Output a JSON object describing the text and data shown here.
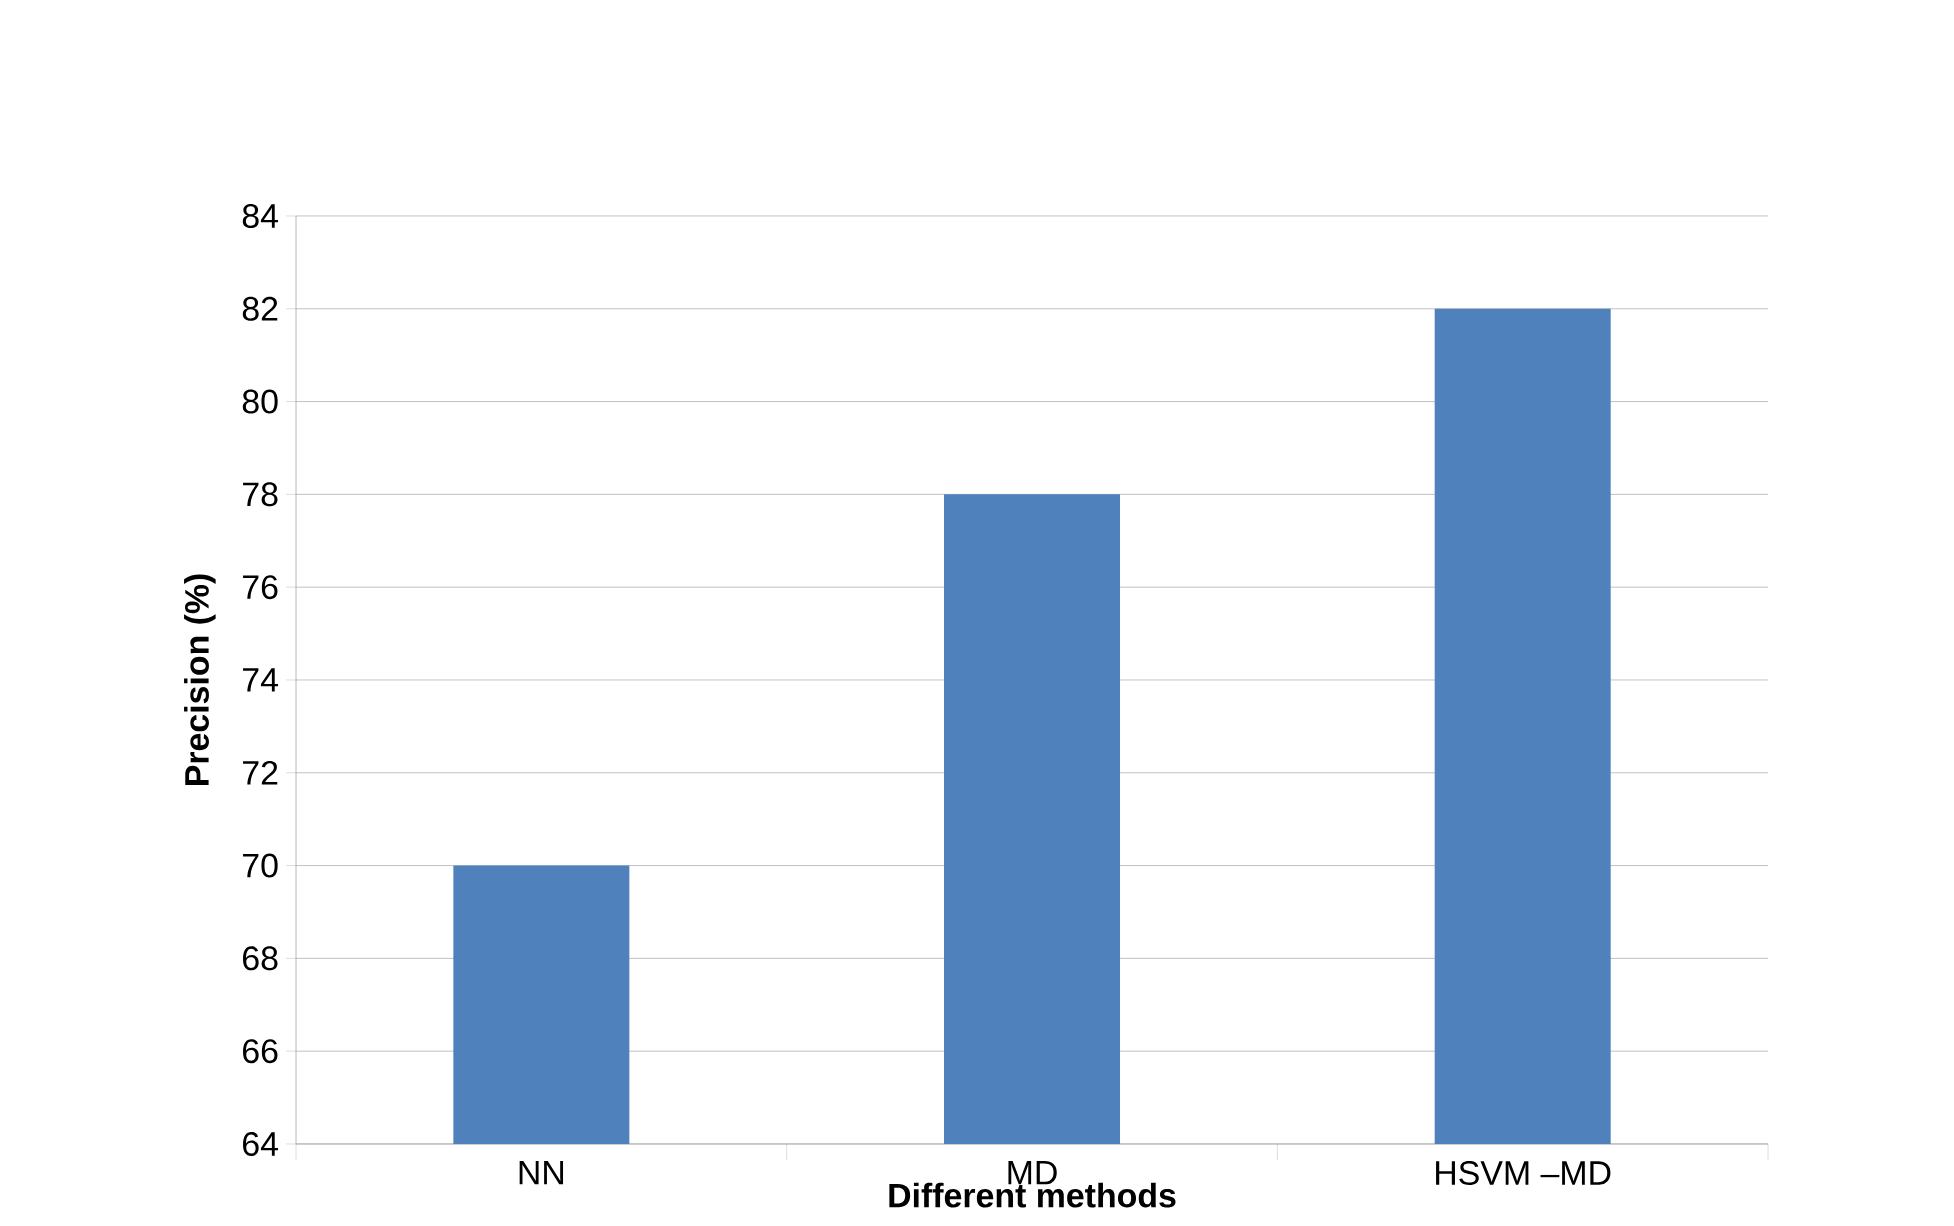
{
  "chart_data": {
    "type": "bar",
    "xlabel": "Different methods",
    "ylabel": "Precision (%)",
    "categories": [
      "NN",
      "MD",
      "HSVM –MD"
    ],
    "values": [
      70,
      78,
      82
    ],
    "color": "#4f81bd",
    "ylim": [
      64,
      84
    ],
    "yticks": [
      64,
      66,
      68,
      70,
      72,
      74,
      76,
      78,
      80,
      82,
      84
    ],
    "grid": "y"
  }
}
